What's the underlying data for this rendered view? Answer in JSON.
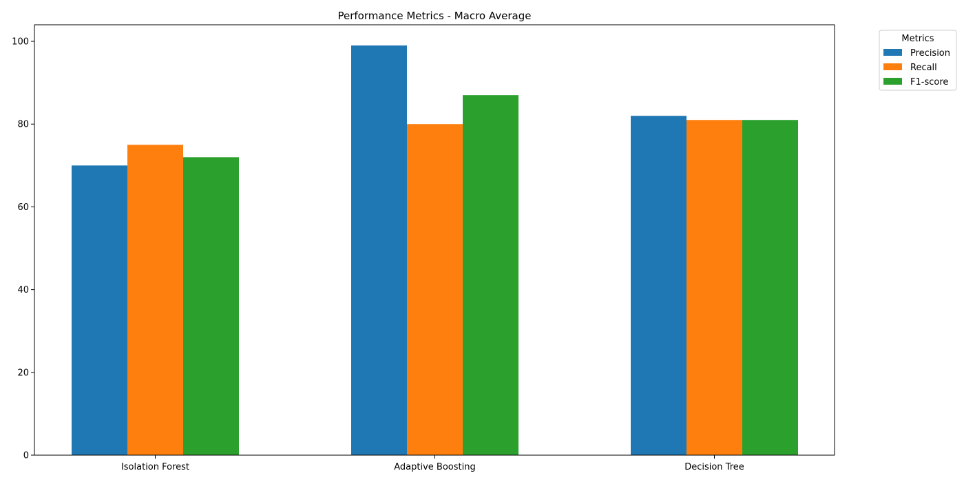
{
  "chart_data": {
    "type": "bar",
    "title": "Performance Metrics - Macro Average",
    "xlabel": "",
    "ylabel": "",
    "categories": [
      "Isolation Forest",
      "Adaptive Boosting",
      "Decision Tree"
    ],
    "series": [
      {
        "name": "Precision",
        "color": "#1f77b4",
        "values": [
          70,
          99,
          82
        ]
      },
      {
        "name": "Recall",
        "color": "#ff7f0e",
        "values": [
          75,
          80,
          81
        ]
      },
      {
        "name": "F1-score",
        "color": "#2ca02c",
        "values": [
          72,
          87,
          81
        ]
      }
    ],
    "ylim": [
      0,
      104
    ],
    "yticks": [
      0,
      20,
      40,
      60,
      80,
      100
    ],
    "grid": false,
    "legend": {
      "title": "Metrics",
      "placement": "outside-top-right"
    }
  }
}
